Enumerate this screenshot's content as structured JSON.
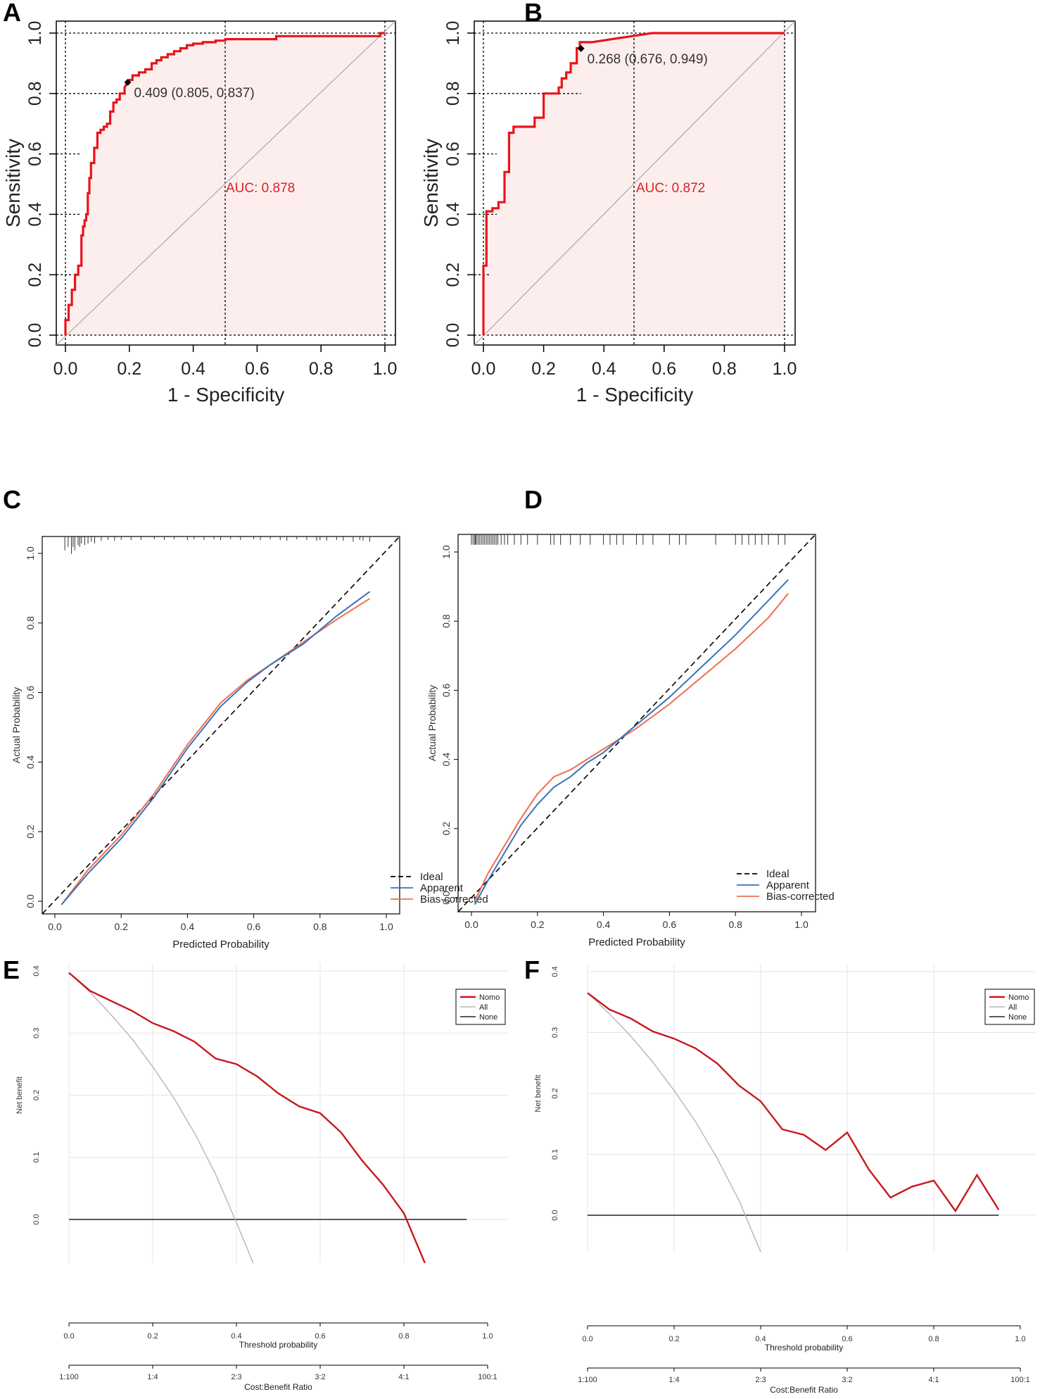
{
  "chart_data": [
    {
      "panel": "A",
      "type": "line",
      "subtype": "roc",
      "xlabel": "1 - Specificity",
      "ylabel": "Sensitivity",
      "xlim": [
        0,
        1
      ],
      "ylim": [
        0,
        1
      ],
      "ticks": [
        "0.0",
        "0.2",
        "0.4",
        "0.6",
        "0.8",
        "1.0"
      ],
      "auc_label": "AUC: 0.878",
      "threshold_label": "0.409 (0.805, 0.837)",
      "threshold_point": [
        0.195,
        0.837
      ],
      "roc_x": [
        0,
        0,
        0.01,
        0.01,
        0.02,
        0.02,
        0.03,
        0.03,
        0.04,
        0.04,
        0.05,
        0.05,
        0.055,
        0.055,
        0.06,
        0.06,
        0.065,
        0.065,
        0.07,
        0.07,
        0.075,
        0.075,
        0.08,
        0.08,
        0.09,
        0.09,
        0.1,
        0.1,
        0.11,
        0.11,
        0.12,
        0.12,
        0.13,
        0.13,
        0.14,
        0.14,
        0.15,
        0.15,
        0.16,
        0.16,
        0.17,
        0.17,
        0.185,
        0.185,
        0.195,
        0.2,
        0.21,
        0.21,
        0.23,
        0.23,
        0.25,
        0.25,
        0.27,
        0.27,
        0.285,
        0.285,
        0.3,
        0.3,
        0.32,
        0.32,
        0.34,
        0.34,
        0.36,
        0.36,
        0.38,
        0.38,
        0.4,
        0.4,
        0.43,
        0.43,
        0.47,
        0.47,
        0.5,
        0.5,
        0.66,
        0.66,
        0.985,
        0.985,
        1.0
      ],
      "roc_y": [
        0,
        0.05,
        0.05,
        0.1,
        0.1,
        0.15,
        0.15,
        0.2,
        0.2,
        0.23,
        0.23,
        0.33,
        0.33,
        0.36,
        0.36,
        0.38,
        0.38,
        0.4,
        0.4,
        0.47,
        0.47,
        0.52,
        0.52,
        0.57,
        0.57,
        0.62,
        0.62,
        0.67,
        0.67,
        0.68,
        0.68,
        0.69,
        0.69,
        0.7,
        0.7,
        0.74,
        0.74,
        0.77,
        0.77,
        0.78,
        0.78,
        0.8,
        0.8,
        0.82,
        0.837,
        0.845,
        0.845,
        0.86,
        0.86,
        0.87,
        0.87,
        0.88,
        0.88,
        0.9,
        0.9,
        0.91,
        0.91,
        0.92,
        0.92,
        0.93,
        0.93,
        0.94,
        0.94,
        0.95,
        0.95,
        0.96,
        0.96,
        0.965,
        0.965,
        0.97,
        0.97,
        0.975,
        0.975,
        0.98,
        0.98,
        0.99,
        0.99,
        1.0,
        1.0
      ]
    },
    {
      "panel": "B",
      "type": "line",
      "subtype": "roc",
      "xlabel": "1 - Specificity",
      "ylabel": "Sensitivity",
      "xlim": [
        0,
        1
      ],
      "ylim": [
        0,
        1
      ],
      "ticks": [
        "0.0",
        "0.2",
        "0.4",
        "0.6",
        "0.8",
        "1.0"
      ],
      "auc_label": "AUC: 0.872",
      "threshold_label": "0.268 (0.676, 0.949)",
      "threshold_point": [
        0.324,
        0.949
      ],
      "roc_x": [
        0,
        0,
        0.01,
        0.01,
        0.03,
        0.03,
        0.05,
        0.05,
        0.07,
        0.07,
        0.085,
        0.085,
        0.1,
        0.1,
        0.17,
        0.17,
        0.2,
        0.2,
        0.25,
        0.25,
        0.26,
        0.26,
        0.275,
        0.275,
        0.29,
        0.29,
        0.31,
        0.31,
        0.32,
        0.32,
        0.36,
        0.36,
        0.56,
        0.56,
        1.0
      ],
      "roc_y": [
        0,
        0.23,
        0.23,
        0.41,
        0.41,
        0.42,
        0.42,
        0.44,
        0.44,
        0.54,
        0.54,
        0.67,
        0.67,
        0.69,
        0.69,
        0.72,
        0.72,
        0.8,
        0.8,
        0.82,
        0.82,
        0.85,
        0.85,
        0.87,
        0.87,
        0.9,
        0.9,
        0.95,
        0.95,
        0.97,
        0.97,
        0.97,
        1.0,
        1.0,
        1.0
      ]
    },
    {
      "panel": "C",
      "type": "line",
      "subtype": "calibration",
      "xlabel": "Predicted Probability",
      "ylabel": "Actual Probability",
      "xlim": [
        0,
        1
      ],
      "ylim": [
        0,
        1
      ],
      "xticks": [
        "0.0",
        "0.2",
        "0.4",
        "0.6",
        "0.8",
        "1.0"
      ],
      "yticks": [
        "0.0",
        "0.2",
        "0.4",
        "0.6",
        "0.8",
        "1.0"
      ],
      "legend": [
        "Ideal",
        "Apparent",
        "Bias-corrected"
      ],
      "series": [
        {
          "name": "Apparent",
          "x": [
            0.02,
            0.1,
            0.2,
            0.3,
            0.4,
            0.5,
            0.58,
            0.65,
            0.75,
            0.85,
            0.95
          ],
          "y": [
            -0.01,
            0.08,
            0.18,
            0.3,
            0.44,
            0.56,
            0.63,
            0.68,
            0.74,
            0.82,
            0.89
          ]
        },
        {
          "name": "Bias-corrected",
          "x": [
            0.02,
            0.1,
            0.2,
            0.3,
            0.4,
            0.5,
            0.58,
            0.65,
            0.75,
            0.85,
            0.95
          ],
          "y": [
            -0.01,
            0.09,
            0.19,
            0.31,
            0.45,
            0.57,
            0.635,
            0.68,
            0.745,
            0.81,
            0.87
          ]
        }
      ],
      "rug_x": [
        0.03,
        0.04,
        0.05,
        0.055,
        0.06,
        0.07,
        0.075,
        0.08,
        0.09,
        0.1,
        0.11,
        0.12,
        0.14,
        0.16,
        0.18,
        0.2,
        0.23,
        0.26,
        0.3,
        0.33,
        0.36,
        0.4,
        0.42,
        0.45,
        0.48,
        0.5,
        0.53,
        0.56,
        0.6,
        0.62,
        0.65,
        0.68,
        0.7,
        0.73,
        0.76,
        0.79,
        0.8,
        0.82,
        0.85,
        0.87,
        0.9,
        0.92,
        0.93,
        0.95
      ],
      "rug_len": [
        0.04,
        0.03,
        0.05,
        0.03,
        0.04,
        0.025,
        0.03,
        0.02,
        0.025,
        0.02,
        0.015,
        0.02,
        0.012,
        0.01,
        0.012,
        0.01,
        0.01,
        0.01,
        0.008,
        0.01,
        0.008,
        0.01,
        0.008,
        0.01,
        0.008,
        0.01,
        0.008,
        0.01,
        0.008,
        0.01,
        0.008,
        0.01,
        0.012,
        0.008,
        0.01,
        0.012,
        0.01,
        0.012,
        0.01,
        0.012,
        0.015,
        0.01,
        0.012,
        0.015
      ]
    },
    {
      "panel": "D",
      "type": "line",
      "subtype": "calibration",
      "xlabel": "Predicted Probability",
      "ylabel": "Actual Probability",
      "xlim": [
        0,
        1
      ],
      "ylim": [
        0,
        1
      ],
      "xticks": [
        "0.0",
        "0.2",
        "0.4",
        "0.6",
        "0.8",
        "1.0"
      ],
      "yticks": [
        "0.0",
        "0.2",
        "0.4",
        "0.6",
        "0.8",
        "1.0"
      ],
      "legend": [
        "Ideal",
        "Apparent",
        "Bias-corrected"
      ],
      "series": [
        {
          "name": "Apparent",
          "x": [
            0.01,
            0.05,
            0.1,
            0.15,
            0.2,
            0.25,
            0.3,
            0.35,
            0.4,
            0.5,
            0.6,
            0.7,
            0.8,
            0.9,
            0.96
          ],
          "y": [
            -0.02,
            0.05,
            0.13,
            0.21,
            0.27,
            0.32,
            0.35,
            0.39,
            0.42,
            0.5,
            0.58,
            0.67,
            0.76,
            0.86,
            0.92
          ]
        },
        {
          "name": "Bias-corrected",
          "x": [
            0.01,
            0.05,
            0.1,
            0.15,
            0.2,
            0.25,
            0.3,
            0.35,
            0.4,
            0.5,
            0.6,
            0.7,
            0.8,
            0.9,
            0.96
          ],
          "y": [
            -0.01,
            0.07,
            0.15,
            0.23,
            0.3,
            0.35,
            0.37,
            0.4,
            0.43,
            0.49,
            0.56,
            0.64,
            0.72,
            0.81,
            0.88
          ]
        }
      ],
      "rug_x": [
        0.0,
        0.005,
        0.01,
        0.012,
        0.015,
        0.02,
        0.025,
        0.03,
        0.035,
        0.04,
        0.045,
        0.05,
        0.055,
        0.06,
        0.065,
        0.07,
        0.075,
        0.08,
        0.09,
        0.1,
        0.11,
        0.13,
        0.15,
        0.17,
        0.2,
        0.24,
        0.25,
        0.27,
        0.3,
        0.33,
        0.36,
        0.4,
        0.42,
        0.44,
        0.46,
        0.5,
        0.52,
        0.55,
        0.6,
        0.63,
        0.65,
        0.74,
        0.8,
        0.82,
        0.84,
        0.86,
        0.88,
        0.9,
        0.93,
        0.95
      ],
      "rug_len": [
        0.03,
        0.03,
        0.03,
        0.03,
        0.03,
        0.03,
        0.03,
        0.03,
        0.03,
        0.03,
        0.03,
        0.03,
        0.03,
        0.03,
        0.03,
        0.03,
        0.03,
        0.03,
        0.03,
        0.03,
        0.03,
        0.03,
        0.03,
        0.03,
        0.03,
        0.03,
        0.03,
        0.03,
        0.03,
        0.03,
        0.03,
        0.03,
        0.03,
        0.03,
        0.03,
        0.03,
        0.03,
        0.03,
        0.03,
        0.03,
        0.03,
        0.03,
        0.03,
        0.03,
        0.03,
        0.03,
        0.03,
        0.03,
        0.03,
        0.03
      ]
    },
    {
      "panel": "E",
      "type": "line",
      "subtype": "decision-curve",
      "xlabel": "Threshold probability",
      "ylabel": "Net benefit",
      "x2label": "Cost:Benefit Ratio",
      "xlim": [
        0,
        1
      ],
      "ylim": [
        -0.07,
        0.41
      ],
      "xticks": [
        "0.0",
        "0.2",
        "0.4",
        "0.6",
        "0.8",
        "1.0"
      ],
      "yticks": [
        "0.0",
        "0.1",
        "0.2",
        "0.3",
        "0.4"
      ],
      "x2ticks": [
        "1:100",
        "1:4",
        "2:3",
        "3:2",
        "4:1",
        "100:1"
      ],
      "legend": [
        "Nomo",
        "All",
        "None"
      ],
      "series": [
        {
          "name": "Nomo",
          "x": [
            0.0,
            0.05,
            0.1,
            0.15,
            0.2,
            0.25,
            0.3,
            0.35,
            0.4,
            0.45,
            0.5,
            0.55,
            0.6,
            0.65,
            0.7,
            0.75,
            0.8,
            0.85
          ],
          "y": [
            0.397,
            0.368,
            0.352,
            0.336,
            0.316,
            0.303,
            0.286,
            0.259,
            0.25,
            0.23,
            0.203,
            0.182,
            0.171,
            0.14,
            0.095,
            0.056,
            0.01,
            -0.07
          ]
        },
        {
          "name": "All",
          "x": [
            0.0,
            0.05,
            0.1,
            0.15,
            0.2,
            0.25,
            0.3,
            0.35,
            0.4,
            0.44
          ],
          "y": [
            0.397,
            0.366,
            0.33,
            0.291,
            0.246,
            0.196,
            0.139,
            0.073,
            -0.005,
            -0.07
          ]
        },
        {
          "name": "None",
          "x": [
            0.0,
            0.95
          ],
          "y": [
            0.0,
            0.0
          ]
        }
      ]
    },
    {
      "panel": "F",
      "type": "line",
      "subtype": "decision-curve",
      "xlabel": "Threshold probability",
      "ylabel": "Net benefit",
      "x2label": "Cost:Benefit Ratio",
      "xlim": [
        0,
        1
      ],
      "ylim": [
        -0.06,
        0.4
      ],
      "xticks": [
        "0.0",
        "0.2",
        "0.4",
        "0.6",
        "0.8",
        "1.0"
      ],
      "yticks": [
        "0.0",
        "0.1",
        "0.2",
        "0.3",
        "0.4"
      ],
      "x2ticks": [
        "1:100",
        "1:4",
        "2:3",
        "3:2",
        "4:1",
        "100:1"
      ],
      "legend": [
        "Nomo",
        "All",
        "None"
      ],
      "series": [
        {
          "name": "Nomo",
          "x": [
            0.0,
            0.05,
            0.1,
            0.15,
            0.2,
            0.25,
            0.3,
            0.35,
            0.4,
            0.45,
            0.5,
            0.55,
            0.6,
            0.65,
            0.7,
            0.75,
            0.8,
            0.85,
            0.9,
            0.95
          ],
          "y": [
            0.365,
            0.338,
            0.323,
            0.302,
            0.29,
            0.274,
            0.249,
            0.213,
            0.187,
            0.141,
            0.132,
            0.107,
            0.136,
            0.075,
            0.029,
            0.047,
            0.057,
            0.007,
            0.066,
            0.009
          ]
        },
        {
          "name": "All",
          "x": [
            0.0,
            0.05,
            0.1,
            0.15,
            0.2,
            0.25,
            0.3,
            0.35,
            0.4
          ],
          "y": [
            0.365,
            0.331,
            0.294,
            0.252,
            0.205,
            0.153,
            0.093,
            0.024,
            -0.06
          ]
        },
        {
          "name": "None",
          "x": [
            0.0,
            0.95
          ],
          "y": [
            0.0,
            0.0
          ]
        }
      ]
    }
  ],
  "panels": {
    "A": {
      "letter": "A"
    },
    "B": {
      "letter": "B"
    },
    "C": {
      "letter": "C"
    },
    "D": {
      "letter": "D"
    },
    "E": {
      "letter": "E"
    },
    "F": {
      "letter": "F"
    }
  },
  "colors": {
    "roc_line": "#e8141b",
    "roc_fill": "#fdeeee",
    "diag": "#a9a9a9",
    "apparent": "#3a73b8",
    "bias": "#f26d4f",
    "nomo": "#c8171e",
    "all": "#b5b5b5",
    "none": "#222222",
    "grid": "#e6e6e6"
  }
}
